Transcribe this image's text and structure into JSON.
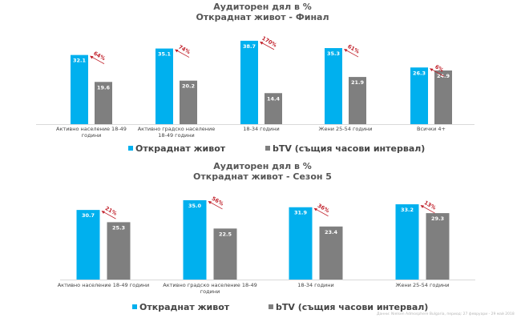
{
  "colors": {
    "series1": "#00b0ee",
    "series2": "#7f7f7f",
    "growth": "#c0202a",
    "axis": "#d9d9d9"
  },
  "legend": {
    "series1": "Откраднат живот",
    "series2": "bTV (същия часови интервал)"
  },
  "footnote": "Данни: Nielsen Admosphere Bulgaria, период: 27 февруари - 29 май 2018",
  "chart_data": [
    {
      "type": "bar",
      "title": "Аудиторен дял в %",
      "subtitle": "Откраднат живот - Финал",
      "xlabel": "",
      "ylabel": "",
      "ylim": [
        0,
        40
      ],
      "grid": false,
      "legend_position": "bottom",
      "categories": [
        "Активно население 18-49 години",
        "Активно градско население 18-49 години",
        "18-34 години",
        "Жени 25-54 години",
        "Всички 4+"
      ],
      "category_lines": [
        [
          "Активно население 18-49",
          "години"
        ],
        [
          "Активно градско население",
          "18-49 години"
        ],
        [
          "18-34 години"
        ],
        [
          "Жени 25-54 години"
        ],
        [
          "Всички 4+"
        ]
      ],
      "series": [
        {
          "name": "Откраднат живот",
          "values": [
            32.1,
            35.1,
            38.7,
            35.3,
            26.3
          ],
          "labels": [
            "32.1",
            "35.1",
            "38.7",
            "35.3",
            "26.3"
          ]
        },
        {
          "name": "bTV (същия часови интервал)",
          "values": [
            19.6,
            20.2,
            14.4,
            21.9,
            24.9
          ],
          "labels": [
            "19.6",
            "20.2",
            "14.4",
            "21.9",
            "24.9"
          ]
        }
      ],
      "annotations": [
        "64%",
        "74%",
        "170%",
        "61%",
        "6%"
      ]
    },
    {
      "type": "bar",
      "title": "Аудиторен дял в %",
      "subtitle": "Откраднат живот - Сезон 5",
      "xlabel": "",
      "ylabel": "",
      "ylim": [
        0,
        40
      ],
      "grid": false,
      "legend_position": "bottom",
      "categories": [
        "Активно население 18-49 години",
        "Активно градско население 18-49 години",
        "18-34 години",
        "Жени 25-54 години"
      ],
      "category_lines": [
        [
          "Активно население 18-49 години"
        ],
        [
          "Активно градско население 18-49",
          "години"
        ],
        [
          "18-34 години"
        ],
        [
          "Жени 25-54 години"
        ]
      ],
      "series": [
        {
          "name": "Откраднат живот",
          "values": [
            30.7,
            35.0,
            31.9,
            33.2
          ],
          "labels": [
            "30.7",
            "35.0",
            "31.9",
            "33.2"
          ]
        },
        {
          "name": "bTV (същия часови интервал)",
          "values": [
            25.3,
            22.5,
            23.4,
            29.3
          ],
          "labels": [
            "25.3",
            "22.5",
            "23.4",
            "29.3"
          ]
        }
      ],
      "annotations": [
        "21%",
        "56%",
        "36%",
        "13%"
      ]
    }
  ]
}
